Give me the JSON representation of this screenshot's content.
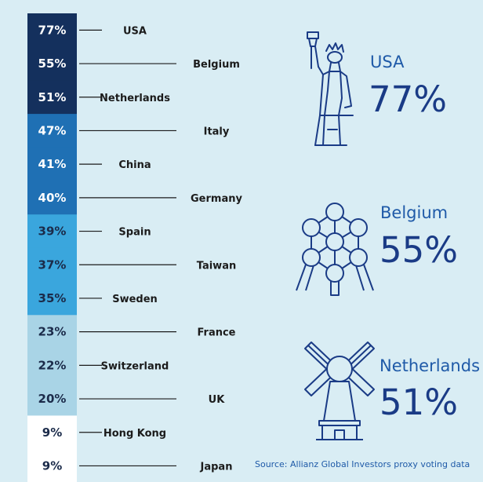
{
  "chart_data": {
    "type": "bar",
    "categories": [
      "USA",
      "Belgium",
      "Netherlands",
      "Italy",
      "China",
      "Germany",
      "Spain",
      "Taiwan",
      "Sweden",
      "France",
      "Switzerland",
      "UK",
      "Hong Kong",
      "Japan"
    ],
    "values": [
      77,
      55,
      51,
      47,
      41,
      40,
      39,
      37,
      35,
      23,
      22,
      20,
      9,
      9
    ],
    "value_labels": [
      "77%",
      "55%",
      "51%",
      "47%",
      "41%",
      "40%",
      "39%",
      "37%",
      "35%",
      "23%",
      "22%",
      "20%",
      "9%",
      "9%"
    ],
    "band_colors": [
      "#14305d",
      "#14305d",
      "#14305d",
      "#1f70b4",
      "#1f70b4",
      "#1f70b4",
      "#3aa6dd",
      "#3aa6dd",
      "#3aa6dd",
      "#a9d4e6",
      "#a9d4e6",
      "#a9d4e6",
      "#ffffff",
      "#ffffff"
    ],
    "label_colors": [
      "#ffffff",
      "#ffffff",
      "#ffffff",
      "#ffffff",
      "#ffffff",
      "#ffffff",
      "#1b2b4a",
      "#1b2b4a",
      "#1b2b4a",
      "#1b2b4a",
      "#1b2b4a",
      "#1b2b4a",
      "#1b2b4a",
      "#1b2b4a"
    ]
  },
  "featured": [
    {
      "country": "USA",
      "value": "77%",
      "icon": "statue-of-liberty-icon"
    },
    {
      "country": "Belgium",
      "value": "55%",
      "icon": "atomium-icon"
    },
    {
      "country": "Netherlands",
      "value": "51%",
      "icon": "windmill-icon"
    }
  ],
  "source": "Source: Allianz Global Investors proxy voting data",
  "colors": {
    "accent": "#1f5aa8",
    "dark": "#1a3b86",
    "background": "#d9edf4"
  }
}
